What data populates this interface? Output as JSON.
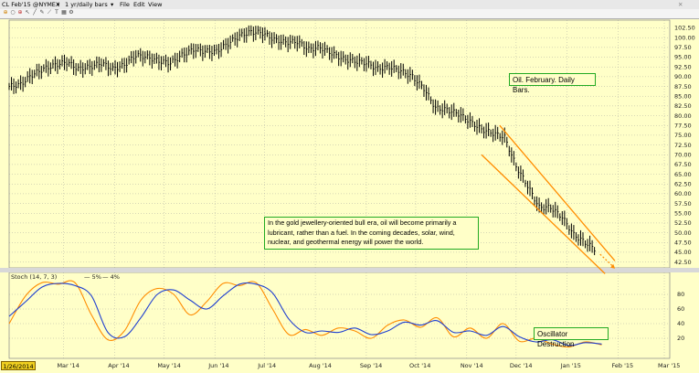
{
  "window": {
    "title": "CL Feb'15 @NYMEX",
    "interval": "1 yr/daily bars",
    "menu": [
      "File",
      "Edit",
      "View"
    ]
  },
  "annotations": {
    "title_box": "Oil. February. Daily Bars.",
    "commentary": "In the gold jewellery-oriented bull era, oil will become primarily a lubricant, rather than a fuel.  In the coming decades, solar, wind, nuclear, and geothermal energy will power the world.",
    "oscillator_label": "Oscillator Destruction"
  },
  "indicator": {
    "name": "Stoch",
    "params": "(14, 7, 3)",
    "line1": "5%",
    "line2": "4%"
  },
  "cursor_date": "1/26/2014",
  "colors": {
    "background": "#ffffc8",
    "bars": "#000000",
    "channel": "#ff8c00",
    "stoch_fast": "#1f3fd0",
    "stoch_slow": "#ff8c00",
    "note_border": "#22aa22"
  },
  "chart_data": [
    {
      "type": "line",
      "title": "",
      "xlabel": "",
      "ylabel": "",
      "x_ticks": [
        "Mar '14",
        "Apr '14",
        "May '14",
        "Jun '14",
        "Jul '14",
        "Aug '14",
        "Sep '14",
        "Oct '14",
        "Nov '14",
        "Dec '14",
        "Jan '15",
        "Feb '15",
        "Mar '15"
      ],
      "y_ticks": [
        102.5,
        100,
        97.5,
        95,
        92.5,
        90,
        87.5,
        85,
        82.5,
        80,
        77.5,
        75,
        72.5,
        70,
        67.5,
        65,
        62.5,
        60,
        57.5,
        55,
        52.5,
        50,
        47.5,
        45,
        42.5
      ],
      "ylim": [
        41,
        104.5
      ],
      "grid": true,
      "series": [
        {
          "values": [
            [
              "2014-01-27",
              87.5
            ],
            [
              "2014-02-03",
              88.0
            ],
            [
              "2014-02-10",
              90.5
            ],
            [
              "2014-02-17",
              92.0
            ],
            [
              "2014-02-24",
              93.0
            ],
            [
              "2014-03-03",
              93.8
            ],
            [
              "2014-03-10",
              92.0
            ],
            [
              "2014-03-17",
              92.5
            ],
            [
              "2014-03-24",
              93.5
            ],
            [
              "2014-03-31",
              92.0
            ],
            [
              "2014-04-07",
              93.0
            ],
            [
              "2014-04-14",
              95.5
            ],
            [
              "2014-04-21",
              95.0
            ],
            [
              "2014-04-28",
              94.0
            ],
            [
              "2014-05-05",
              93.5
            ],
            [
              "2014-05-12",
              95.5
            ],
            [
              "2014-05-19",
              97.0
            ],
            [
              "2014-05-26",
              96.5
            ],
            [
              "2014-06-02",
              96.5
            ],
            [
              "2014-06-09",
              98.5
            ],
            [
              "2014-06-16",
              100.5
            ],
            [
              "2014-06-23",
              101.5
            ],
            [
              "2014-06-30",
              101.2
            ],
            [
              "2014-07-07",
              99.5
            ],
            [
              "2014-07-14",
              98.8
            ],
            [
              "2014-07-21",
              99.0
            ],
            [
              "2014-07-28",
              97.0
            ],
            [
              "2014-08-04",
              97.5
            ],
            [
              "2014-08-11",
              96.0
            ],
            [
              "2014-08-18",
              94.5
            ],
            [
              "2014-08-25",
              94.0
            ],
            [
              "2014-09-01",
              93.5
            ],
            [
              "2014-09-08",
              92.0
            ],
            [
              "2014-09-15",
              92.5
            ],
            [
              "2014-09-22",
              91.5
            ],
            [
              "2014-09-29",
              90.0
            ],
            [
              "2014-10-06",
              87.0
            ],
            [
              "2014-10-13",
              82.0
            ],
            [
              "2014-10-20",
              81.5
            ],
            [
              "2014-10-27",
              80.5
            ],
            [
              "2014-11-03",
              78.5
            ],
            [
              "2014-11-10",
              76.5
            ],
            [
              "2014-11-17",
              75.5
            ],
            [
              "2014-11-24",
              74.5
            ],
            [
              "2014-12-01",
              67.0
            ],
            [
              "2014-12-08",
              62.0
            ],
            [
              "2014-12-15",
              56.5
            ],
            [
              "2014-12-22",
              56.5
            ],
            [
              "2014-12-29",
              54.0
            ],
            [
              "2015-01-05",
              49.5
            ],
            [
              "2015-01-12",
              47.5
            ],
            [
              "2015-01-19",
              45.5
            ]
          ]
        }
      ],
      "channel": {
        "upper": [
          [
            "2014-11-21",
            77.5
          ],
          [
            "2015-01-30",
            42.8
          ]
        ],
        "lower": [
          [
            "2014-11-10",
            70.0
          ],
          [
            "2015-01-24",
            39.5
          ]
        ]
      }
    },
    {
      "type": "line",
      "title": "",
      "y_ticks": [
        80,
        60,
        40,
        20
      ],
      "ylim": [
        0,
        100
      ],
      "series": [
        {
          "name": "5%",
          "values": [
            [
              "2014-01-27",
              50
            ],
            [
              "2014-02-06",
              70
            ],
            [
              "2014-02-16",
              90
            ],
            [
              "2014-02-26",
              95
            ],
            [
              "2014-03-08",
              92
            ],
            [
              "2014-03-18",
              78
            ],
            [
              "2014-03-28",
              28
            ],
            [
              "2014-04-07",
              22
            ],
            [
              "2014-04-17",
              48
            ],
            [
              "2014-04-27",
              80
            ],
            [
              "2014-05-07",
              86
            ],
            [
              "2014-05-17",
              72
            ],
            [
              "2014-05-27",
              60
            ],
            [
              "2014-06-06",
              78
            ],
            [
              "2014-06-16",
              94
            ],
            [
              "2014-06-26",
              94
            ],
            [
              "2014-07-06",
              82
            ],
            [
              "2014-07-16",
              46
            ],
            [
              "2014-07-26",
              28
            ],
            [
              "2014-08-05",
              30
            ],
            [
              "2014-08-15",
              28
            ],
            [
              "2014-08-25",
              34
            ],
            [
              "2014-09-04",
              25
            ],
            [
              "2014-09-14",
              30
            ],
            [
              "2014-09-24",
              42
            ],
            [
              "2014-10-04",
              38
            ],
            [
              "2014-10-14",
              44
            ],
            [
              "2014-10-24",
              28
            ],
            [
              "2014-11-03",
              30
            ],
            [
              "2014-11-13",
              24
            ],
            [
              "2014-11-23",
              36
            ],
            [
              "2014-12-03",
              22
            ],
            [
              "2014-12-13",
              15
            ],
            [
              "2014-12-23",
              18
            ],
            [
              "2015-01-02",
              10
            ],
            [
              "2015-01-12",
              14
            ],
            [
              "2015-01-22",
              12
            ]
          ]
        },
        {
          "name": "4%",
          "values": [
            [
              "2014-01-27",
              40
            ],
            [
              "2014-02-06",
              78
            ],
            [
              "2014-02-16",
              96
            ],
            [
              "2014-02-26",
              94
            ],
            [
              "2014-03-08",
              96
            ],
            [
              "2014-03-18",
              52
            ],
            [
              "2014-03-28",
              18
            ],
            [
              "2014-04-07",
              30
            ],
            [
              "2014-04-17",
              72
            ],
            [
              "2014-04-27",
              88
            ],
            [
              "2014-05-07",
              80
            ],
            [
              "2014-05-17",
              52
            ],
            [
              "2014-05-27",
              70
            ],
            [
              "2014-06-06",
              95
            ],
            [
              "2014-06-16",
              92
            ],
            [
              "2014-06-26",
              96
            ],
            [
              "2014-07-06",
              60
            ],
            [
              "2014-07-16",
              25
            ],
            [
              "2014-07-26",
              32
            ],
            [
              "2014-08-05",
              24
            ],
            [
              "2014-08-15",
              34
            ],
            [
              "2014-08-25",
              30
            ],
            [
              "2014-09-04",
              20
            ],
            [
              "2014-09-14",
              38
            ],
            [
              "2014-09-24",
              45
            ],
            [
              "2014-10-04",
              35
            ],
            [
              "2014-10-14",
              48
            ],
            [
              "2014-10-24",
              22
            ],
            [
              "2014-11-03",
              34
            ],
            [
              "2014-11-13",
              20
            ],
            [
              "2014-11-23",
              40
            ],
            [
              "2014-12-03",
              16
            ],
            [
              "2014-12-13",
              20
            ],
            [
              "2014-12-23",
              12
            ],
            [
              "2015-01-02",
              8
            ],
            [
              "2015-01-12",
              15
            ],
            [
              "2015-01-22",
              11
            ]
          ]
        }
      ]
    }
  ]
}
